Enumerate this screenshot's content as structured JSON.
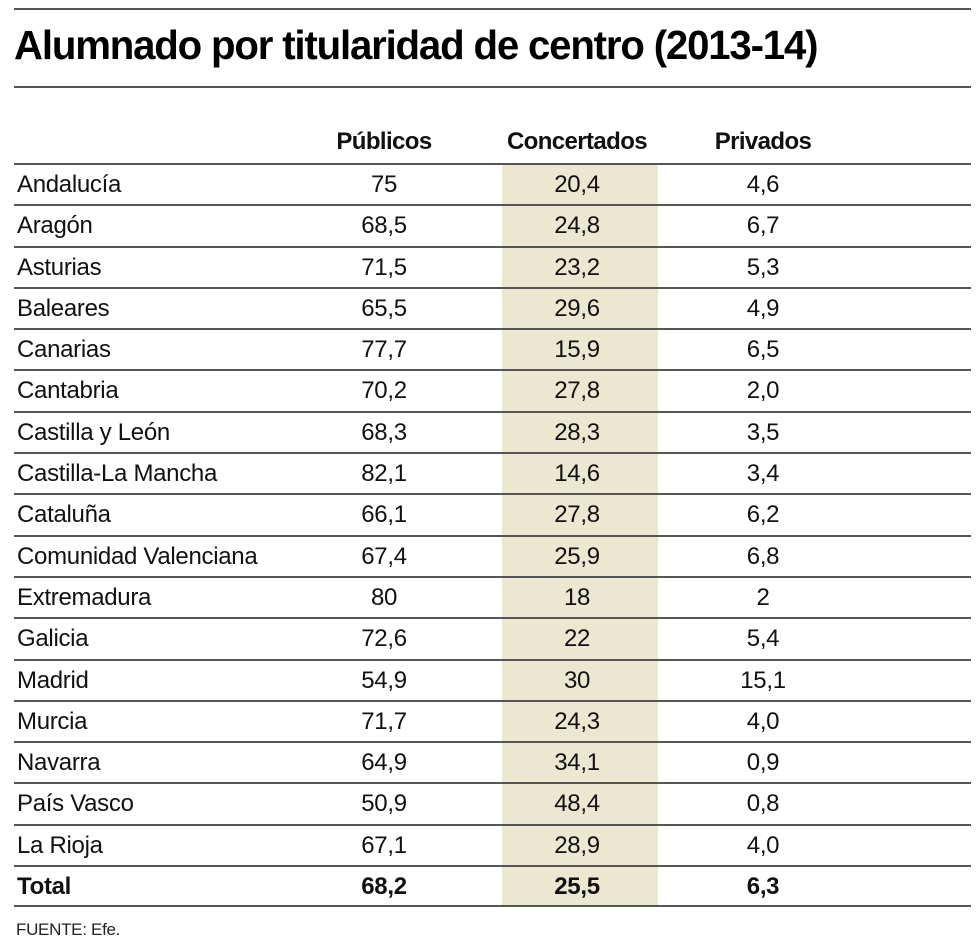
{
  "title": "Alumnado por titularidad de centro (2013-14)",
  "source": "FUENTE: Efe.",
  "colors": {
    "highlight_column": "#ebe7d1",
    "rules": "#555555"
  },
  "chart_data": {
    "type": "table",
    "title": "Alumnado por titularidad de centro (2013-14)",
    "columns": [
      "Públicos",
      "Concertados",
      "Privados"
    ],
    "highlighted_column": "Concertados",
    "rows": [
      {
        "label": "Andalucía",
        "values": [
          "75",
          "20,4",
          "4,6"
        ]
      },
      {
        "label": "Aragón",
        "values": [
          "68,5",
          "24,8",
          "6,7"
        ]
      },
      {
        "label": "Asturias",
        "values": [
          "71,5",
          "23,2",
          "5,3"
        ]
      },
      {
        "label": "Baleares",
        "values": [
          "65,5",
          "29,6",
          "4,9"
        ]
      },
      {
        "label": "Canarias",
        "values": [
          "77,7",
          "15,9",
          "6,5"
        ]
      },
      {
        "label": "Cantabria",
        "values": [
          "70,2",
          "27,8",
          "2,0"
        ]
      },
      {
        "label": "Castilla y León",
        "values": [
          "68,3",
          "28,3",
          "3,5"
        ]
      },
      {
        "label": "Castilla-La Mancha",
        "values": [
          "82,1",
          "14,6",
          "3,4"
        ]
      },
      {
        "label": "Cataluña",
        "values": [
          "66,1",
          "27,8",
          "6,2"
        ]
      },
      {
        "label": "Comunidad Valenciana",
        "values": [
          "67,4",
          "25,9",
          "6,8"
        ]
      },
      {
        "label": "Extremadura",
        "values": [
          "80",
          "18",
          "2"
        ]
      },
      {
        "label": "Galicia",
        "values": [
          "72,6",
          "22",
          "5,4"
        ]
      },
      {
        "label": "Madrid",
        "values": [
          "54,9",
          "30",
          "15,1"
        ]
      },
      {
        "label": "Murcia",
        "values": [
          "71,7",
          "24,3",
          "4,0"
        ]
      },
      {
        "label": "Navarra",
        "values": [
          "64,9",
          "34,1",
          "0,9"
        ]
      },
      {
        "label": "País Vasco",
        "values": [
          "50,9",
          "48,4",
          "0,8"
        ]
      },
      {
        "label": "La Rioja",
        "values": [
          "67,1",
          "28,9",
          "4,0"
        ]
      }
    ],
    "total": {
      "label": "Total",
      "values": [
        "68,2",
        "25,5",
        "6,3"
      ]
    }
  }
}
